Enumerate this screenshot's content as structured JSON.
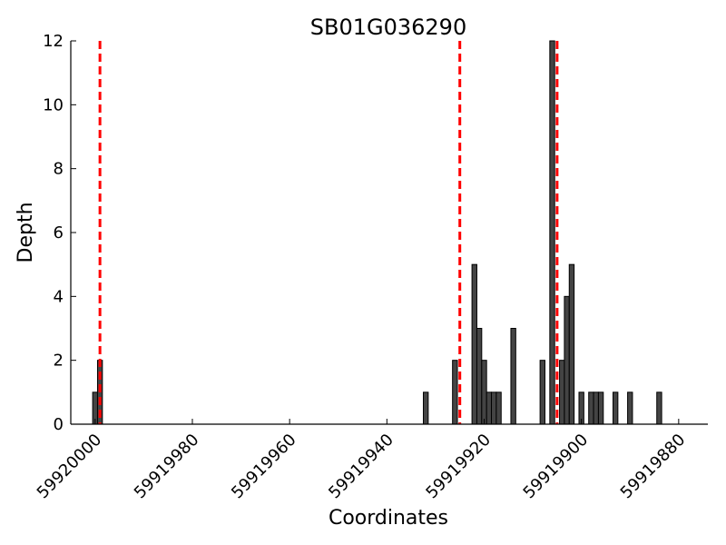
{
  "chart_data": {
    "type": "bar",
    "title": "SB01G036290",
    "xlabel": "Coordinates",
    "ylabel": "Depth",
    "x_reversed": true,
    "xlim": [
      59920005,
      59919874
    ],
    "ylim": [
      0,
      12
    ],
    "xticks": [
      59920000,
      59919980,
      59919960,
      59919940,
      59919920,
      59919900,
      59919880
    ],
    "xtick_labels": [
      "59920000",
      "59919980",
      "59919960",
      "59919940",
      "59919920",
      "59919900",
      "59919880"
    ],
    "yticks": [
      0,
      2,
      4,
      6,
      8,
      10,
      12
    ],
    "ytick_labels": [
      "0",
      "2",
      "4",
      "6",
      "8",
      "10",
      "12"
    ],
    "grid": false,
    "bar_color": "#444444",
    "reference_line_color": "#ff0000",
    "reference_lines_x": [
      59919999,
      59919925,
      59919905
    ],
    "bars": [
      {
        "x": 59920000,
        "depth": 1
      },
      {
        "x": 59919999,
        "depth": 2
      },
      {
        "x": 59919932,
        "depth": 1
      },
      {
        "x": 59919926,
        "depth": 2
      },
      {
        "x": 59919922,
        "depth": 5
      },
      {
        "x": 59919921,
        "depth": 3
      },
      {
        "x": 59919920,
        "depth": 2
      },
      {
        "x": 59919919,
        "depth": 1
      },
      {
        "x": 59919918,
        "depth": 1
      },
      {
        "x": 59919917,
        "depth": 1
      },
      {
        "x": 59919914,
        "depth": 3
      },
      {
        "x": 59919908,
        "depth": 2
      },
      {
        "x": 59919906,
        "depth": 12
      },
      {
        "x": 59919904,
        "depth": 2
      },
      {
        "x": 59919903,
        "depth": 4
      },
      {
        "x": 59919902,
        "depth": 5
      },
      {
        "x": 59919900,
        "depth": 1
      },
      {
        "x": 59919898,
        "depth": 1
      },
      {
        "x": 59919897,
        "depth": 1
      },
      {
        "x": 59919896,
        "depth": 1
      },
      {
        "x": 59919893,
        "depth": 1
      },
      {
        "x": 59919890,
        "depth": 1
      },
      {
        "x": 59919884,
        "depth": 1
      }
    ]
  }
}
